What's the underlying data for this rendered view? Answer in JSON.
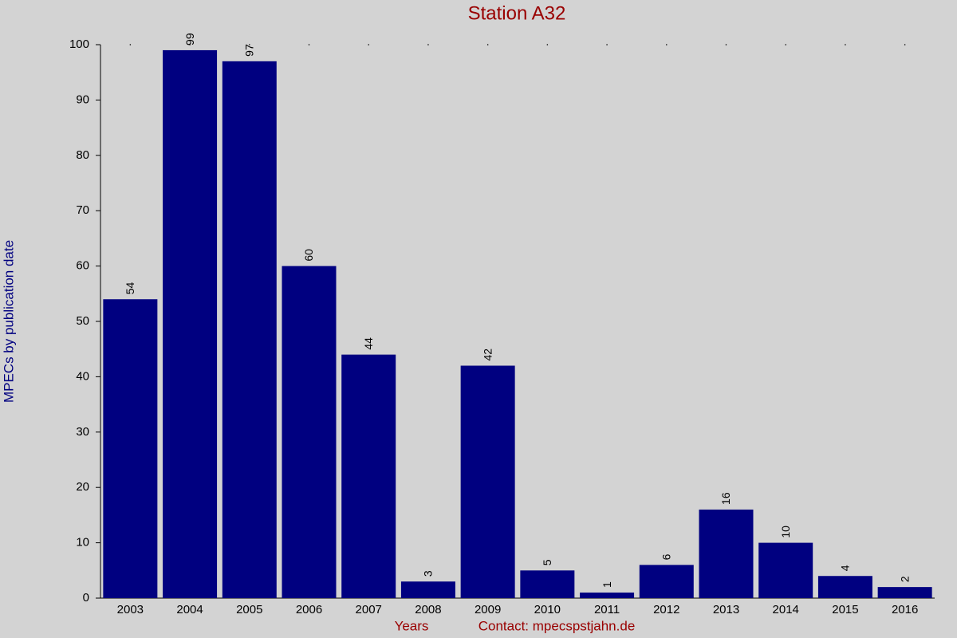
{
  "chart_data": {
    "type": "bar",
    "title": "Station A32",
    "y_label": "MPECs by publication date",
    "x_label": "Years",
    "annotation": "Contact: mpecspstjahn.de",
    "categories": [
      "2003",
      "2004",
      "2005",
      "2006",
      "2007",
      "2008",
      "2009",
      "2010",
      "2011",
      "2012",
      "2013",
      "2014",
      "2015",
      "2016"
    ],
    "values": [
      54,
      99,
      97,
      60,
      44,
      3,
      42,
      5,
      1,
      6,
      16,
      10,
      4,
      2
    ],
    "color": "#000080",
    "ylim": [
      0,
      100
    ],
    "yticks": [
      0,
      10,
      20,
      30,
      40,
      50,
      60,
      70,
      80,
      90,
      100
    ],
    "grid": false
  }
}
